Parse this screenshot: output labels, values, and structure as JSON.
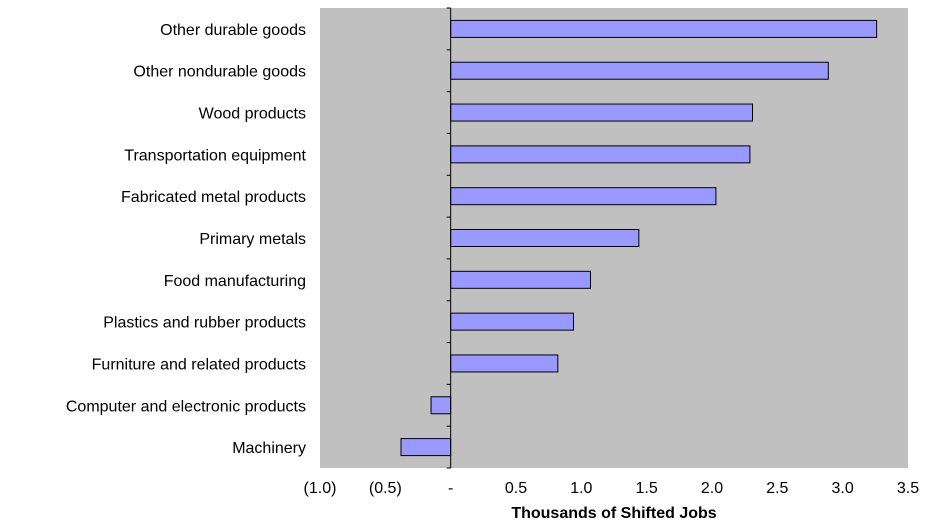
{
  "colors": {
    "plot_background": "#c0c0c0",
    "bar_fill": "#9999ff",
    "bar_stroke": "#000000"
  },
  "chart_data": {
    "type": "bar",
    "orientation": "horizontal",
    "categories": [
      "Other durable goods",
      "Other nondurable goods",
      "Wood products",
      "Transportation equipment",
      "Fabricated metal products",
      "Primary metals",
      "Food manufacturing",
      "Plastics and rubber products",
      "Furniture and related products",
      "Computer and electronic products",
      "Machinery"
    ],
    "values": [
      3.26,
      2.89,
      2.31,
      2.29,
      2.03,
      1.44,
      1.07,
      0.94,
      0.82,
      -0.15,
      -0.38
    ],
    "xlabel": "Thousands of Shifted Jobs",
    "ylabel": "",
    "title": "",
    "xlim": [
      -1.0,
      3.5
    ],
    "ticks": [
      -1.0,
      -0.5,
      0,
      0.5,
      1.0,
      1.5,
      2.0,
      2.5,
      3.0,
      3.5
    ],
    "tick_labels": [
      "(1.0)",
      "(0.5)",
      "-",
      "0.5",
      "1.0",
      "1.5",
      "2.0",
      "2.5",
      "3.0",
      "3.5"
    ],
    "grid": false,
    "legend": "none"
  }
}
